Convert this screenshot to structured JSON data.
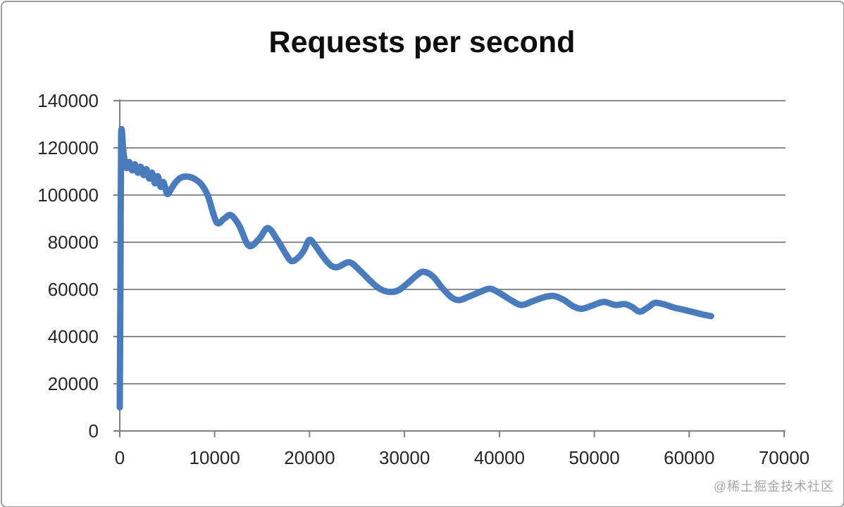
{
  "watermark": "@稀土掘金技术社区",
  "colors": {
    "series_blue": "#4a7cbd",
    "gridline_gray": "#8c8c8c",
    "axis_gray": "#7f7f7f",
    "tick_label": "#262626",
    "title_black": "#0d0d0d",
    "frame_border": "#9d9d9d",
    "watermark_gray": "#a6a6a6"
  },
  "chart_data": {
    "type": "line",
    "title": "Requests per second",
    "xlabel": "",
    "ylabel": "",
    "xlim": [
      0,
      70000
    ],
    "ylim": [
      0,
      140000
    ],
    "xticks": [
      0,
      10000,
      20000,
      30000,
      40000,
      50000,
      60000,
      70000
    ],
    "yticks": [
      0,
      20000,
      40000,
      60000,
      80000,
      100000,
      120000,
      140000
    ],
    "grid": "horizontal",
    "legend": "none",
    "series": [
      {
        "name": "Requests per second",
        "color": "#4a7cbd",
        "points": [
          [
            0,
            10000
          ],
          [
            80,
            70000
          ],
          [
            150,
            125500
          ],
          [
            400,
            117500
          ],
          [
            700,
            111500
          ],
          [
            1000,
            114000
          ],
          [
            1300,
            110500
          ],
          [
            1600,
            113000
          ],
          [
            1900,
            109500
          ],
          [
            2200,
            112000
          ],
          [
            2500,
            108500
          ],
          [
            2800,
            111000
          ],
          [
            3100,
            107000
          ],
          [
            3400,
            109500
          ],
          [
            3700,
            105000
          ],
          [
            4000,
            108000
          ],
          [
            4300,
            103500
          ],
          [
            4600,
            105500
          ],
          [
            5000,
            100500
          ],
          [
            5400,
            102500
          ],
          [
            5900,
            105500
          ],
          [
            6500,
            107500
          ],
          [
            7200,
            107800
          ],
          [
            7900,
            106800
          ],
          [
            8600,
            104500
          ],
          [
            9300,
            99500
          ],
          [
            10200,
            88500
          ],
          [
            11000,
            90000
          ],
          [
            11700,
            91500
          ],
          [
            12600,
            87000
          ],
          [
            13600,
            78500
          ],
          [
            14700,
            81500
          ],
          [
            15600,
            86000
          ],
          [
            16600,
            81000
          ],
          [
            17500,
            75000
          ],
          [
            18100,
            72000
          ],
          [
            18800,
            73500
          ],
          [
            19400,
            76500
          ],
          [
            20000,
            81000
          ],
          [
            20700,
            78000
          ],
          [
            21500,
            73500
          ],
          [
            22300,
            70000
          ],
          [
            23000,
            69500
          ],
          [
            24200,
            71500
          ],
          [
            25300,
            68000
          ],
          [
            26300,
            64000
          ],
          [
            27300,
            60500
          ],
          [
            28300,
            59000
          ],
          [
            29300,
            59500
          ],
          [
            30300,
            62500
          ],
          [
            31300,
            66000
          ],
          [
            32000,
            67500
          ],
          [
            33000,
            65500
          ],
          [
            34000,
            60500
          ],
          [
            35000,
            56500
          ],
          [
            35800,
            55500
          ],
          [
            36800,
            57000
          ],
          [
            38000,
            59000
          ],
          [
            39000,
            60300
          ],
          [
            40000,
            58500
          ],
          [
            41200,
            55500
          ],
          [
            42300,
            53400
          ],
          [
            43500,
            55000
          ],
          [
            44800,
            56800
          ],
          [
            45800,
            57200
          ],
          [
            46800,
            55500
          ],
          [
            47800,
            52800
          ],
          [
            48700,
            51800
          ],
          [
            49800,
            53200
          ],
          [
            51000,
            54700
          ],
          [
            52200,
            53400
          ],
          [
            53200,
            53800
          ],
          [
            54000,
            52500
          ],
          [
            54800,
            50600
          ],
          [
            55700,
            52500
          ],
          [
            56400,
            54300
          ],
          [
            57400,
            53600
          ],
          [
            58400,
            52300
          ],
          [
            59500,
            51300
          ],
          [
            60500,
            50300
          ],
          [
            61400,
            49400
          ],
          [
            62300,
            48700
          ]
        ]
      }
    ]
  }
}
